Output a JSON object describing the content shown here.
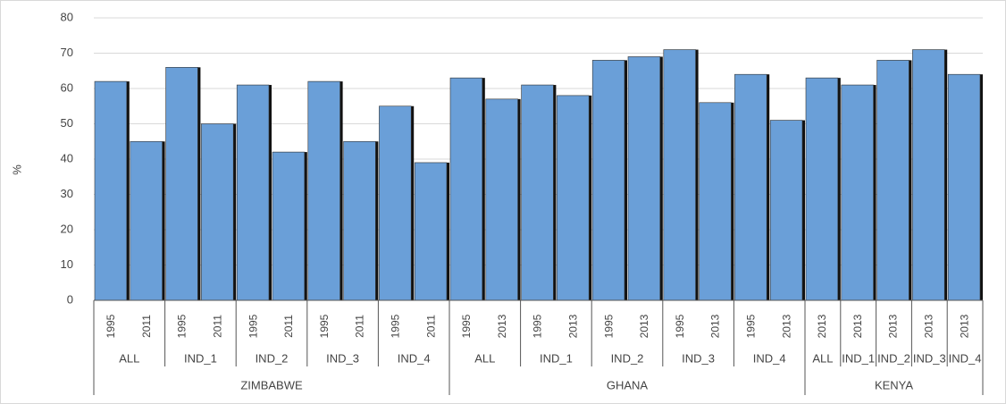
{
  "chart_data": {
    "type": "bar",
    "y_label": "%",
    "color": "#6a9fd8",
    "ylim": [
      0,
      80
    ],
    "yticks": [
      0,
      10,
      20,
      30,
      40,
      50,
      60,
      70,
      80
    ],
    "grid": true,
    "countries": [
      {
        "name": "ZIMBABWE",
        "groups": [
          {
            "name": "ALL",
            "categories": [
              "1995",
              "2011"
            ],
            "values": [
              62,
              45
            ]
          },
          {
            "name": "IND_1",
            "categories": [
              "1995",
              "2011"
            ],
            "values": [
              66,
              50
            ]
          },
          {
            "name": "IND_2",
            "categories": [
              "1995",
              "2011"
            ],
            "values": [
              61,
              42
            ]
          },
          {
            "name": "IND_3",
            "categories": [
              "1995",
              "2011"
            ],
            "values": [
              62,
              45
            ]
          },
          {
            "name": "IND_4",
            "categories": [
              "1995",
              "2011"
            ],
            "values": [
              55,
              39
            ]
          }
        ]
      },
      {
        "name": "GHANA",
        "groups": [
          {
            "name": "ALL",
            "categories": [
              "1995",
              "2013"
            ],
            "values": [
              63,
              57
            ]
          },
          {
            "name": "IND_1",
            "categories": [
              "1995",
              "2013"
            ],
            "values": [
              61,
              58
            ]
          },
          {
            "name": "IND_2",
            "categories": [
              "1995",
              "2013"
            ],
            "values": [
              68,
              69
            ]
          },
          {
            "name": "IND_3",
            "categories": [
              "1995",
              "2013"
            ],
            "values": [
              71,
              56
            ]
          },
          {
            "name": "IND_4",
            "categories": [
              "1995",
              "2013"
            ],
            "values": [
              64,
              51
            ]
          }
        ]
      },
      {
        "name": "KENYA",
        "groups": [
          {
            "name": "ALL",
            "categories": [
              "2013"
            ],
            "values": [
              63
            ]
          },
          {
            "name": "IND_1",
            "categories": [
              "2013"
            ],
            "values": [
              61
            ]
          },
          {
            "name": "IND_2",
            "categories": [
              "2013"
            ],
            "values": [
              68
            ]
          },
          {
            "name": "IND_3",
            "categories": [
              "2013"
            ],
            "values": [
              71
            ]
          },
          {
            "name": "IND_4",
            "categories": [
              "2013"
            ],
            "values": [
              64
            ]
          }
        ]
      }
    ]
  }
}
